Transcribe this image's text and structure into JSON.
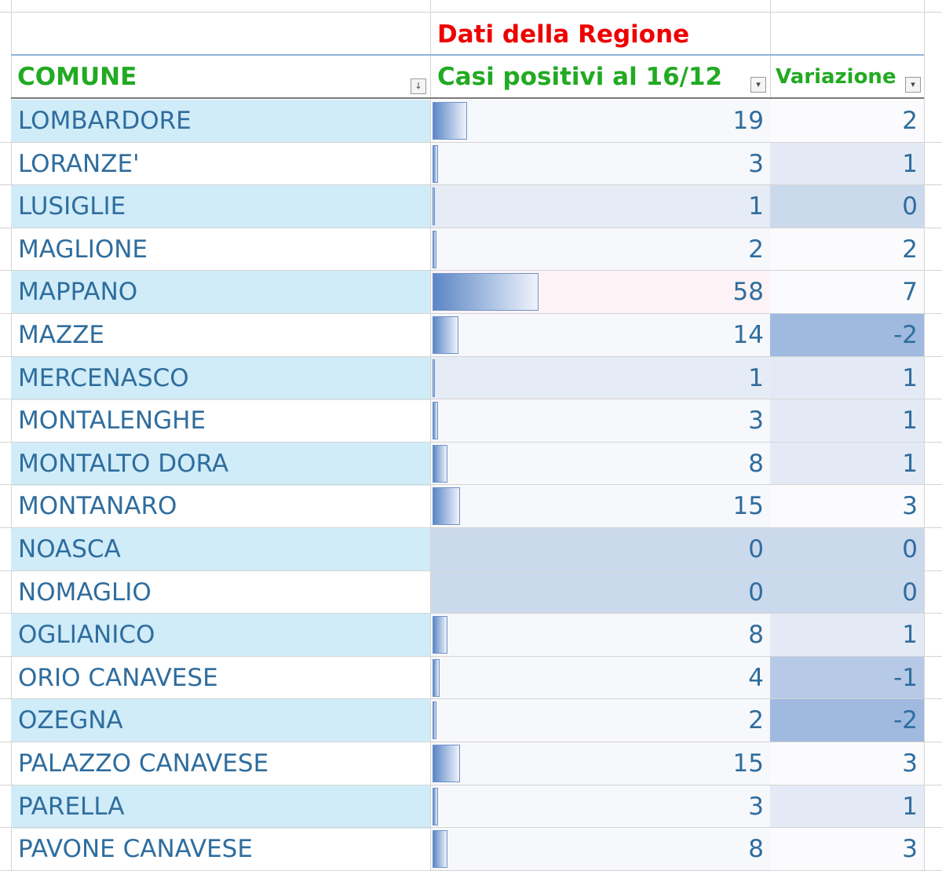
{
  "header": {
    "group_title": "Dati della Regione",
    "col_comune": "COMUNE",
    "col_casi": "Casi positivi al 16/12",
    "col_variazione": "Variazione",
    "filter_icon_sorted": "↓",
    "filter_icon": "▾"
  },
  "colors": {
    "name_band": "#d0ecf8",
    "bar": "#5b86c5",
    "number_text": "#2f6d9e",
    "header_red": "#ee0000",
    "header_green": "#22aa22"
  },
  "rows": [
    {
      "comune": "LOMBARDORE",
      "casi": 19,
      "variazione": 2
    },
    {
      "comune": "LORANZE'",
      "casi": 3,
      "variazione": 1
    },
    {
      "comune": "LUSIGLIE",
      "casi": 1,
      "variazione": 0
    },
    {
      "comune": "MAGLIONE",
      "casi": 2,
      "variazione": 2
    },
    {
      "comune": "MAPPANO",
      "casi": 58,
      "variazione": 7
    },
    {
      "comune": "MAZZE",
      "casi": 14,
      "variazione": -2
    },
    {
      "comune": "MERCENASCO",
      "casi": 1,
      "variazione": 1
    },
    {
      "comune": "MONTALENGHE",
      "casi": 3,
      "variazione": 1
    },
    {
      "comune": "MONTALTO DORA",
      "casi": 8,
      "variazione": 1
    },
    {
      "comune": "MONTANARO",
      "casi": 15,
      "variazione": 3
    },
    {
      "comune": "NOASCA",
      "casi": 0,
      "variazione": 0
    },
    {
      "comune": "NOMAGLIO",
      "casi": 0,
      "variazione": 0
    },
    {
      "comune": "OGLIANICO",
      "casi": 8,
      "variazione": 1
    },
    {
      "comune": "ORIO CANAVESE",
      "casi": 4,
      "variazione": -1
    },
    {
      "comune": "OZEGNA",
      "casi": 2,
      "variazione": -2
    },
    {
      "comune": "PALAZZO CANAVESE",
      "casi": 15,
      "variazione": 3
    },
    {
      "comune": "PARELLA",
      "casi": 3,
      "variazione": 1
    },
    {
      "comune": "PAVONE CANAVESE",
      "casi": 8,
      "variazione": 3
    }
  ]
}
